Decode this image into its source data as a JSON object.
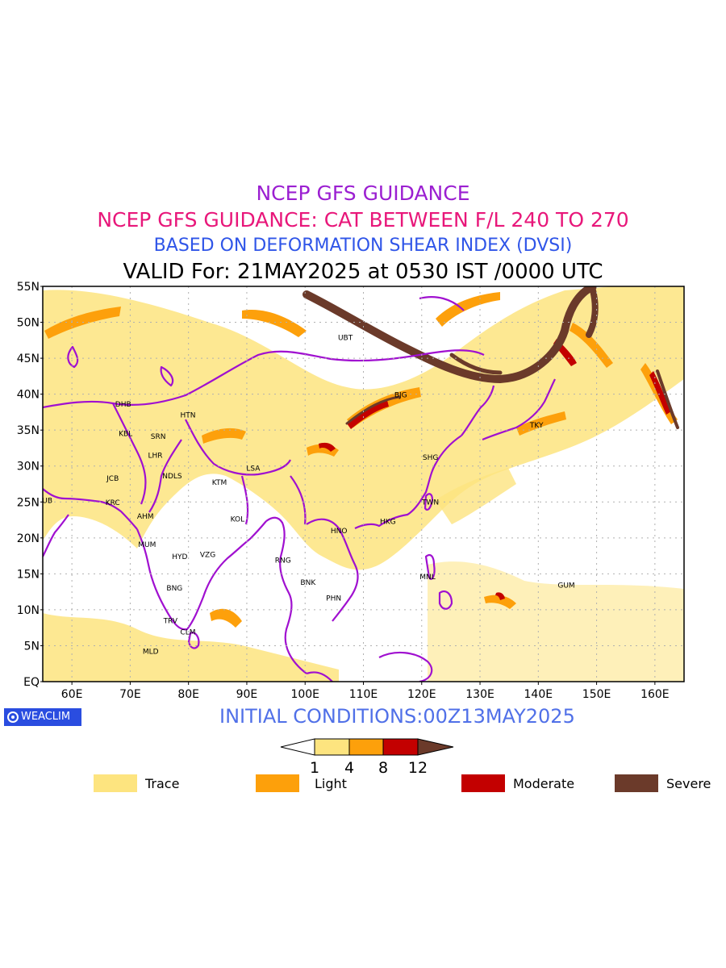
{
  "titles": {
    "line1": "NCEP GFS GUIDANCE",
    "line2": "NCEP GFS GUIDANCE: CAT BETWEEN F/L 240 TO 270",
    "line3": "BASED ON DEFORMATION SHEAR INDEX (DVSI)",
    "line4": "VALID For: 21MAY2025 at 0530 IST /0000 UTC"
  },
  "map": {
    "lat_labels": [
      "55N",
      "50N",
      "45N",
      "40N",
      "35N",
      "30N",
      "25N",
      "20N",
      "15N",
      "10N",
      "5N",
      "EQ"
    ],
    "lon_labels": [
      "60E",
      "70E",
      "80E",
      "90E",
      "100E",
      "110E",
      "120E",
      "130E",
      "140E",
      "150E",
      "160E"
    ],
    "stations": [
      {
        "code": "UBT",
        "lon": 106.9,
        "lat": 47.9
      },
      {
        "code": "BJG",
        "lon": 116.4,
        "lat": 39.9
      },
      {
        "code": "TKY",
        "lon": 139.7,
        "lat": 35.7
      },
      {
        "code": "DHB",
        "lon": 68.8,
        "lat": 38.6
      },
      {
        "code": "HTN",
        "lon": 79.9,
        "lat": 37.1
      },
      {
        "code": "KBL",
        "lon": 69.2,
        "lat": 34.5
      },
      {
        "code": "SRN",
        "lon": 74.8,
        "lat": 34.1
      },
      {
        "code": "LHR",
        "lon": 74.3,
        "lat": 31.5
      },
      {
        "code": "SHG",
        "lon": 121.5,
        "lat": 31.2
      },
      {
        "code": "LSA",
        "lon": 91.1,
        "lat": 29.7
      },
      {
        "code": "JCB",
        "lon": 67.0,
        "lat": 28.3
      },
      {
        "code": "NDLS",
        "lon": 77.2,
        "lat": 28.6
      },
      {
        "code": "KTM",
        "lon": 85.3,
        "lat": 27.7
      },
      {
        "code": "DUB",
        "lon": 55.3,
        "lat": 25.2
      },
      {
        "code": "KRC",
        "lon": 67.0,
        "lat": 24.9
      },
      {
        "code": "TWN",
        "lon": 121.5,
        "lat": 25.0
      },
      {
        "code": "AHM",
        "lon": 72.6,
        "lat": 23.0
      },
      {
        "code": "KOL",
        "lon": 88.4,
        "lat": 22.6
      },
      {
        "code": "HKG",
        "lon": 114.2,
        "lat": 22.3
      },
      {
        "code": "HNO",
        "lon": 105.8,
        "lat": 21.0
      },
      {
        "code": "MUM",
        "lon": 72.9,
        "lat": 19.1
      },
      {
        "code": "HYD",
        "lon": 78.5,
        "lat": 17.4
      },
      {
        "code": "VZG",
        "lon": 83.3,
        "lat": 17.7
      },
      {
        "code": "RNG",
        "lon": 96.2,
        "lat": 16.9
      },
      {
        "code": "MNL",
        "lon": 121.0,
        "lat": 14.6
      },
      {
        "code": "BNK",
        "lon": 100.5,
        "lat": 13.8
      },
      {
        "code": "GUM",
        "lon": 144.8,
        "lat": 13.4
      },
      {
        "code": "BNG",
        "lon": 77.6,
        "lat": 13.0
      },
      {
        "code": "PHN",
        "lon": 104.9,
        "lat": 11.6
      },
      {
        "code": "TRV",
        "lon": 76.9,
        "lat": 8.5
      },
      {
        "code": "CLM",
        "lon": 79.9,
        "lat": 6.9
      },
      {
        "code": "MLD",
        "lon": 73.5,
        "lat": 4.2
      }
    ],
    "extent": {
      "lon": [
        55,
        165
      ],
      "lat": [
        0,
        55
      ]
    }
  },
  "initial_conditions": "INITIAL CONDITIONS:00Z13MAY2025",
  "logo_text": "WEACLIM",
  "colorbar": {
    "ticks": [
      "1",
      "4",
      "8",
      "12"
    ],
    "colors": [
      "#ffffff",
      "#fde47f",
      "#fda00b",
      "#c30000",
      "#6b3a2a"
    ]
  },
  "legend": [
    {
      "label": "Trace",
      "color": "#fde47f"
    },
    {
      "label": "Light",
      "color": "#fda00b"
    },
    {
      "label": "Moderate",
      "color": "#c30000"
    },
    {
      "label": "Severe",
      "color": "#6b3a2a"
    }
  ]
}
